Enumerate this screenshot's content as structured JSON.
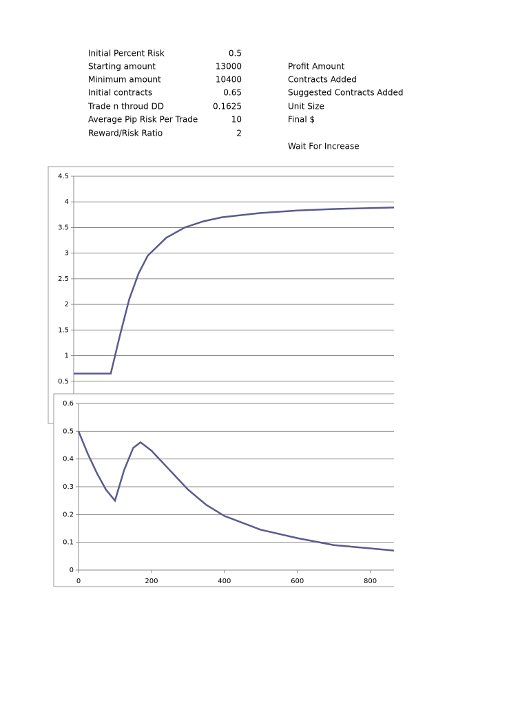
{
  "table": {
    "rows": [
      [
        "Initial Percent Risk",
        0.5
      ],
      [
        "Starting amount",
        13000
      ],
      [
        "Minimum amount",
        10400
      ],
      [
        "Initial contracts",
        0.65
      ],
      [
        "Trade n throud DD",
        0.1625
      ],
      [
        "Average Pip Risk Per Trade",
        10
      ],
      [
        "Reward/Risk Ratio",
        2
      ]
    ],
    "notes": [
      "Profit Amount",
      "Contracts Added",
      "Suggested Contracts Added",
      "Unit Size",
      "Final $",
      "Wait For Increase"
    ]
  },
  "chart_data": [
    {
      "type": "line",
      "color": "#595a8f",
      "grid": true,
      "xlim": [
        0,
        865
      ],
      "ylim": [
        0,
        4.5
      ],
      "yticks": [
        0.5,
        1,
        1.5,
        2,
        2.5,
        3,
        3.5,
        4,
        4.5
      ],
      "x": [
        0,
        100,
        125,
        150,
        175,
        200,
        250,
        300,
        350,
        400,
        500,
        600,
        700,
        800,
        865
      ],
      "values": [
        0.65,
        0.65,
        1.4,
        2.1,
        2.6,
        2.95,
        3.3,
        3.5,
        3.62,
        3.7,
        3.78,
        3.83,
        3.86,
        3.88,
        3.89
      ]
    },
    {
      "type": "line",
      "color": "#595a8f",
      "grid": true,
      "xlim": [
        0,
        865
      ],
      "ylim": [
        0,
        0.6
      ],
      "xticks": [
        0,
        200,
        400,
        600,
        800
      ],
      "yticks": [
        0,
        0.1,
        0.2,
        0.3,
        0.4,
        0.5,
        0.6
      ],
      "x": [
        0,
        25,
        50,
        75,
        100,
        125,
        150,
        170,
        200,
        250,
        300,
        350,
        400,
        500,
        600,
        700,
        800,
        865
      ],
      "values": [
        0.5,
        0.42,
        0.35,
        0.29,
        0.25,
        0.36,
        0.44,
        0.46,
        0.43,
        0.36,
        0.29,
        0.235,
        0.195,
        0.145,
        0.115,
        0.09,
        0.078,
        0.07
      ]
    }
  ]
}
